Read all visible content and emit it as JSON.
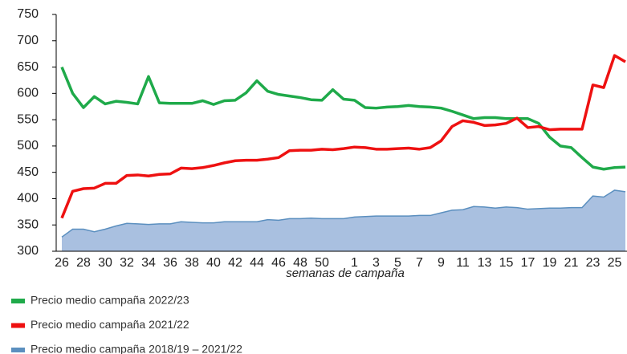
{
  "chart_data": {
    "type": "line",
    "x_label": "semanas de campaña",
    "categories": [
      "26",
      null,
      "28",
      null,
      "30",
      null,
      "32",
      null,
      "34",
      null,
      "36",
      null,
      "38",
      null,
      "40",
      null,
      "42",
      null,
      "44",
      null,
      "46",
      null,
      "48",
      null,
      "50",
      null,
      null,
      "1",
      null,
      "3",
      null,
      "5",
      null,
      "7",
      null,
      "9",
      null,
      "11",
      null,
      "13",
      null,
      "15",
      null,
      "17",
      null,
      "19",
      null,
      "21",
      null,
      "23",
      null,
      "25",
      null
    ],
    "ylim": [
      300,
      750
    ],
    "yticks": [
      300,
      350,
      400,
      450,
      500,
      550,
      600,
      650,
      700,
      750
    ],
    "legend": "bottom",
    "series": [
      {
        "name": "Precio medio campaña 2022/23",
        "color": "#1faa4a",
        "type": "line",
        "values": [
          650,
          600,
          573,
          594,
          580,
          585,
          583,
          580,
          632,
          582,
          581,
          581,
          581,
          586,
          579,
          586,
          587,
          601,
          624,
          604,
          598,
          595,
          592,
          588,
          587,
          607,
          589,
          587,
          573,
          572,
          574,
          575,
          577,
          575,
          574,
          572,
          566,
          559,
          552,
          554,
          554,
          552,
          552,
          552,
          543,
          517,
          500,
          497,
          478,
          460,
          456,
          459,
          460
        ]
      },
      {
        "name": "Precio medio campaña 2021/22",
        "color": "#ee1111",
        "type": "line",
        "values": [
          363,
          414,
          419,
          420,
          429,
          429,
          444,
          445,
          443,
          446,
          447,
          458,
          457,
          459,
          463,
          468,
          472,
          473,
          473,
          475,
          478,
          491,
          492,
          492,
          494,
          493,
          495,
          498,
          497,
          494,
          494,
          495,
          496,
          494,
          497,
          510,
          537,
          548,
          545,
          539,
          540,
          543,
          553,
          535,
          537,
          531,
          532,
          532,
          532,
          616,
          611,
          672,
          660
        ]
      },
      {
        "name": "Precio medio campaña 2018/19 – 2021/22",
        "color": "#5b8fbf",
        "type": "area",
        "values": [
          327,
          342,
          342,
          337,
          342,
          348,
          353,
          352,
          351,
          352,
          352,
          356,
          355,
          354,
          354,
          356,
          356,
          356,
          356,
          360,
          359,
          362,
          362,
          363,
          362,
          362,
          362,
          365,
          366,
          367,
          367,
          367,
          367,
          368,
          368,
          373,
          378,
          379,
          385,
          384,
          382,
          384,
          383,
          380,
          381,
          382,
          382,
          383,
          383,
          405,
          403,
          416,
          413
        ]
      }
    ]
  }
}
